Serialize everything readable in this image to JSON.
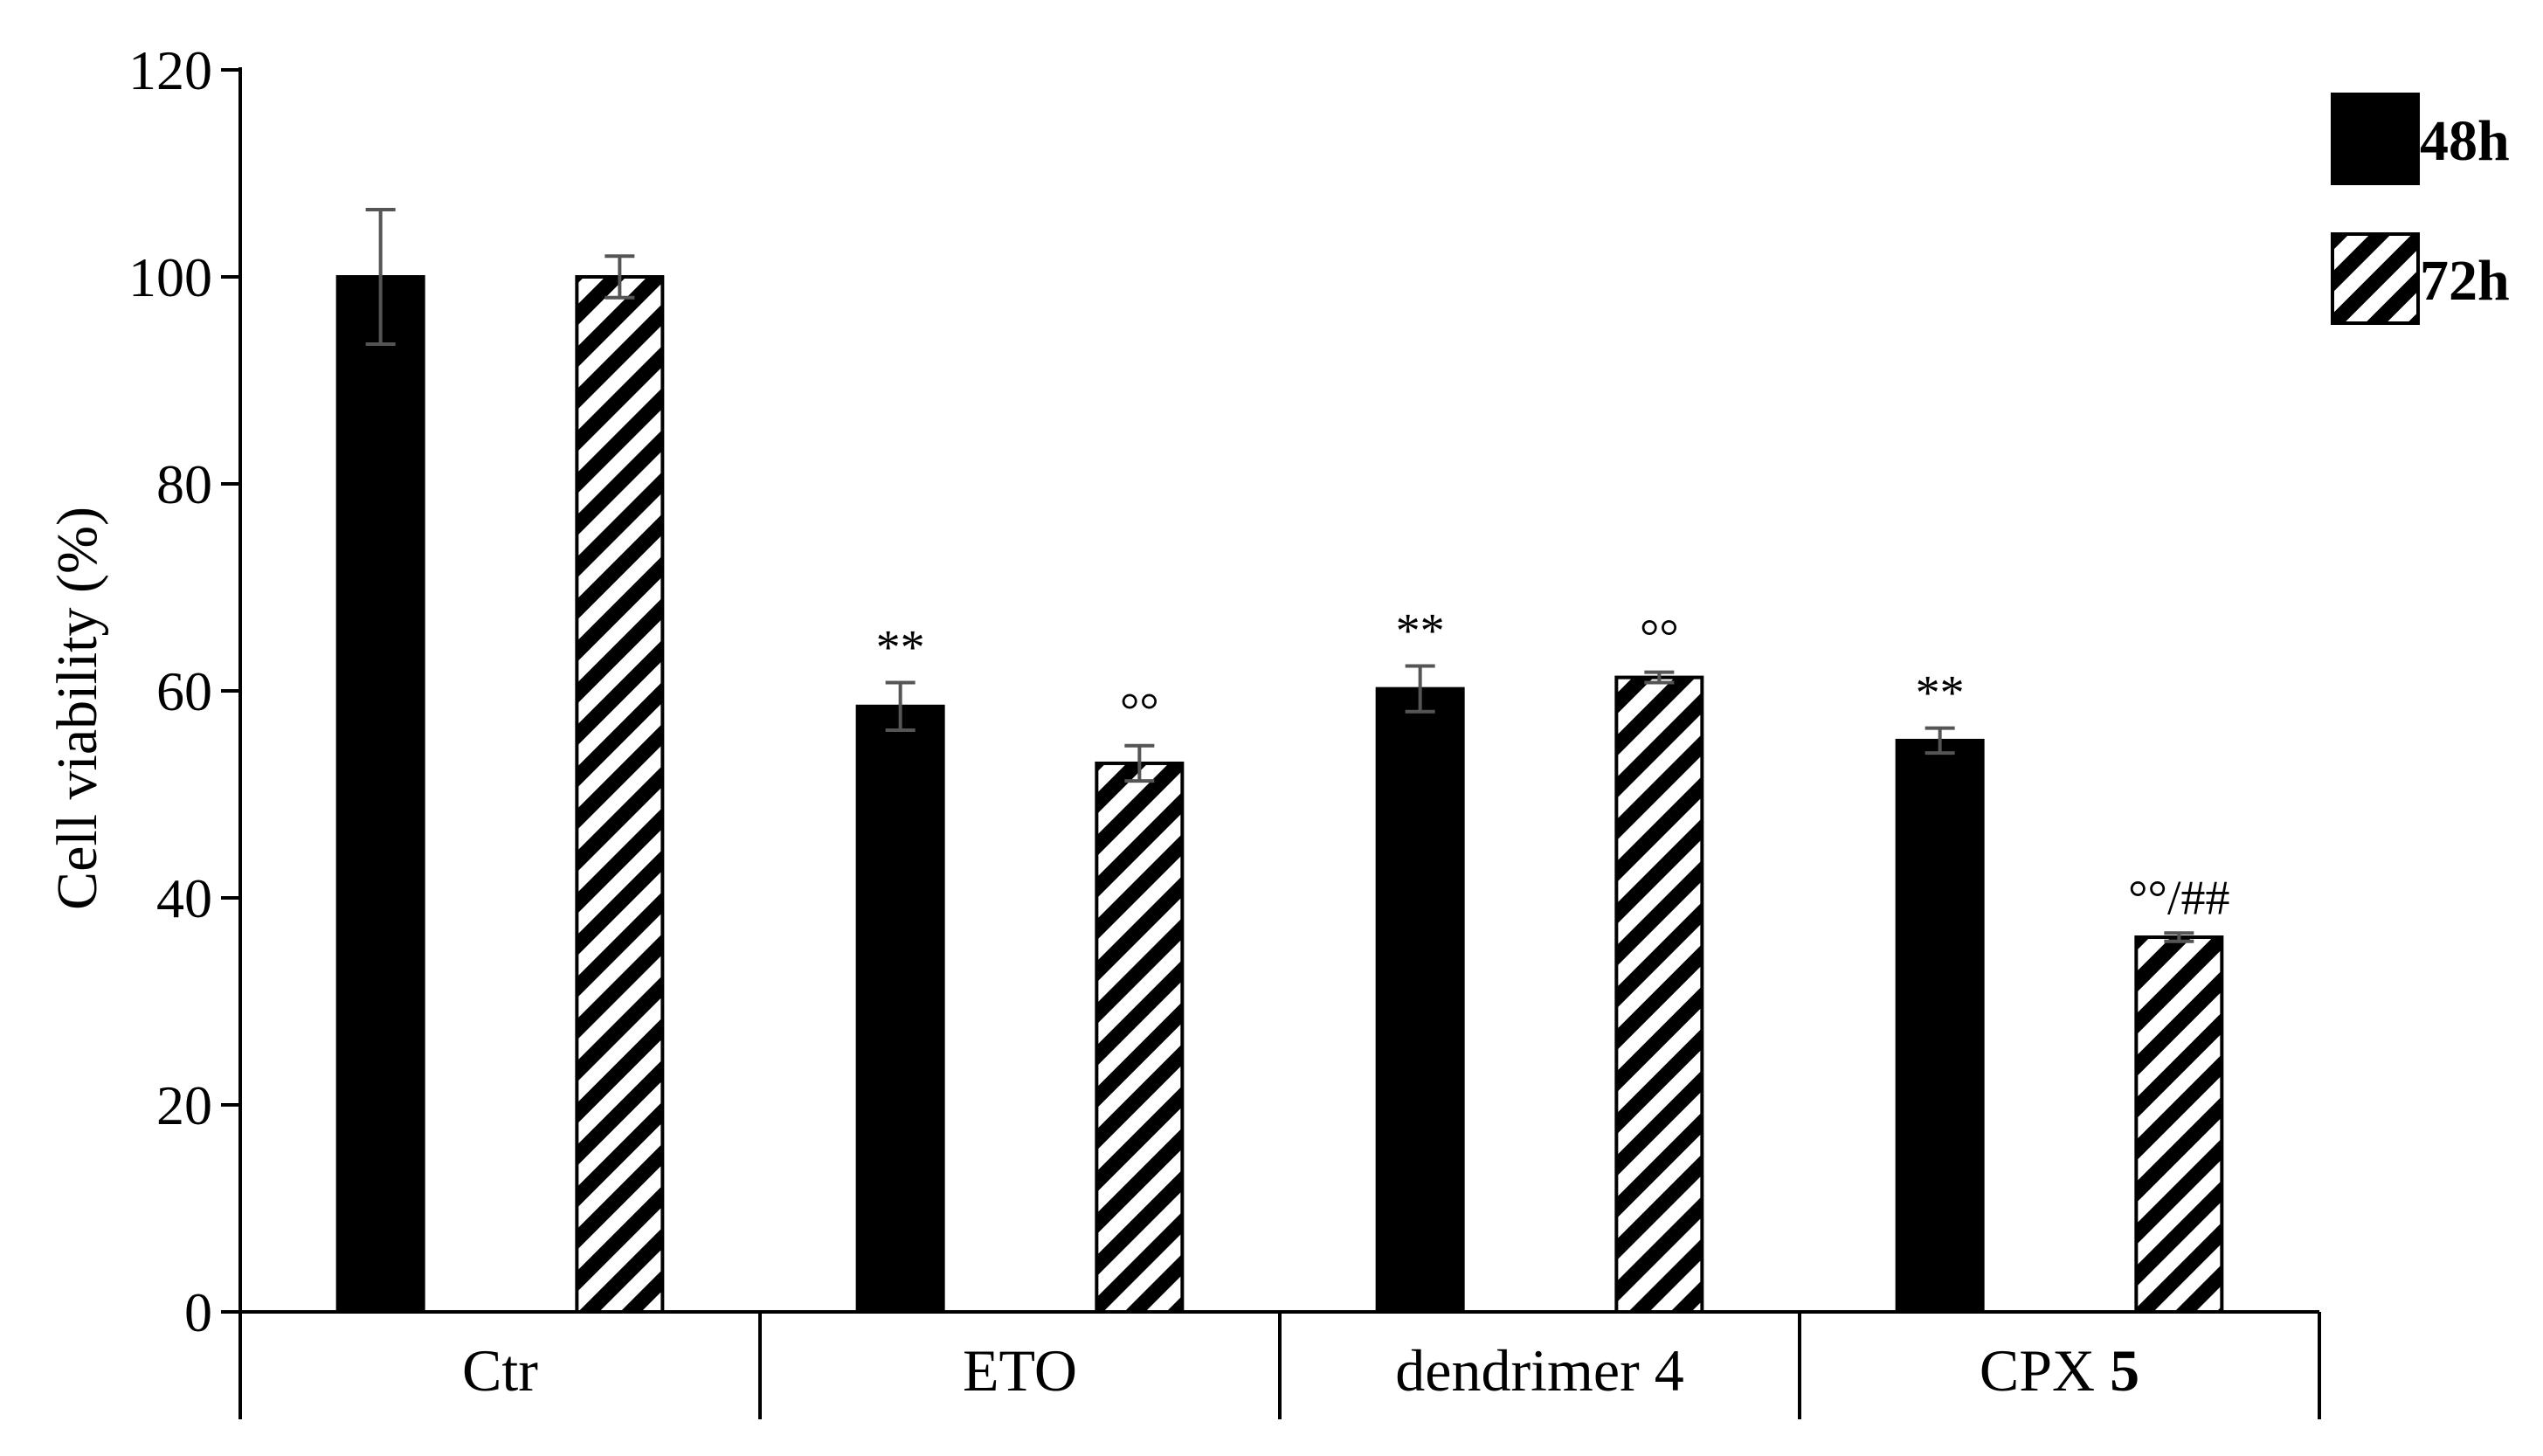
{
  "chart_data": {
    "type": "bar",
    "title": "",
    "xlabel": "",
    "ylabel": "Cell viability (%)",
    "ylim": [
      0,
      120
    ],
    "yticks": [
      0,
      20,
      40,
      60,
      80,
      100,
      120
    ],
    "categories": [
      {
        "text": "Ctr",
        "bold_suffix": ""
      },
      {
        "text": "ETO",
        "bold_suffix": ""
      },
      {
        "text": "dendrimer 4",
        "bold_suffix": ""
      },
      {
        "text": "CPX ",
        "bold_suffix": "5"
      }
    ],
    "series": [
      {
        "name": "48h",
        "fill": "solid",
        "color": "#000000",
        "values": [
          100,
          58.5,
          60.2,
          55.2
        ],
        "errors": [
          6.5,
          2.3,
          2.2,
          1.2
        ],
        "annotations": [
          "",
          "**",
          "**",
          "**"
        ]
      },
      {
        "name": "72h",
        "fill": "hatched",
        "color": "#000000",
        "values": [
          100,
          53.0,
          61.3,
          36.2
        ],
        "errors": [
          2.0,
          1.7,
          0.5,
          0.4
        ],
        "annotations": [
          "",
          "°°",
          "°°",
          "°°/##"
        ]
      }
    ],
    "legend_position": "top-right",
    "grid": false
  }
}
